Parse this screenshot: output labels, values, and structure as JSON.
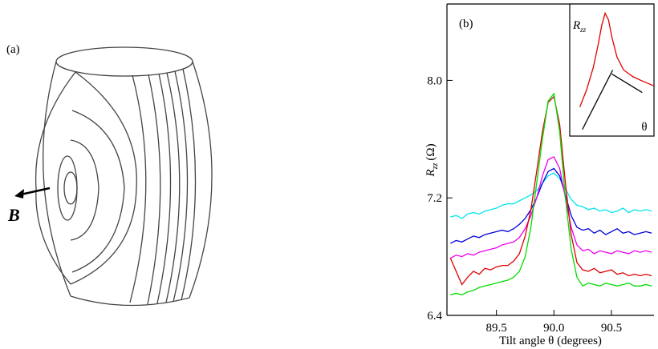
{
  "diagram": {
    "label": "(a)",
    "field_label": "B"
  },
  "chart_data": [
    {
      "type": "line",
      "panel_label": "(b)",
      "xlabel": "Tilt angle θ (degrees)",
      "ylabel": {
        "symbol": "R",
        "subscript": "zz",
        "unit": "(Ω)"
      },
      "xlim": [
        89.07,
        90.87
      ],
      "ylim": [
        6.4,
        8.52
      ],
      "xticks": [
        89.5,
        {
          "value": 90,
          "label": "90.0"
        },
        90.5
      ],
      "yticks": [
        6.4,
        7.2,
        {
          "value": 8,
          "label": "8.0"
        }
      ],
      "x": [
        89.1,
        89.15,
        89.2,
        89.25,
        89.3,
        89.35,
        89.4,
        89.45,
        89.5,
        89.55,
        89.6,
        89.65,
        89.7,
        89.75,
        89.8,
        89.85,
        89.9,
        89.95,
        90.0,
        90.05,
        90.1,
        90.15,
        90.2,
        90.25,
        90.3,
        90.35,
        90.4,
        90.45,
        90.5,
        90.55,
        90.6,
        90.65,
        90.7,
        90.75,
        90.8,
        90.85
      ],
      "series": [
        {
          "color": "#00e5ee",
          "values": [
            7.07,
            7.08,
            7.06,
            7.09,
            7.1,
            7.09,
            7.11,
            7.12,
            7.13,
            7.15,
            7.16,
            7.16,
            7.18,
            7.2,
            7.22,
            7.25,
            7.3,
            7.35,
            7.37,
            7.33,
            7.26,
            7.19,
            7.15,
            7.14,
            7.12,
            7.13,
            7.11,
            7.12,
            7.1,
            7.11,
            7.13,
            7.1,
            7.12,
            7.11,
            7.12,
            7.11
          ]
        },
        {
          "color": "#0000dd",
          "values": [
            6.89,
            6.91,
            6.9,
            6.92,
            6.94,
            6.93,
            6.95,
            6.96,
            6.97,
            6.98,
            6.97,
            6.99,
            7.02,
            7.06,
            7.12,
            7.2,
            7.3,
            7.38,
            7.4,
            7.35,
            7.22,
            7.08,
            7.0,
            6.98,
            6.99,
            6.96,
            6.98,
            6.95,
            6.97,
            6.99,
            6.96,
            6.97,
            6.95,
            6.96,
            6.97,
            6.96
          ]
        },
        {
          "color": "#ee00ee",
          "values": [
            6.79,
            6.81,
            6.8,
            6.82,
            6.81,
            6.83,
            6.84,
            6.85,
            6.86,
            6.88,
            6.89,
            6.9,
            6.93,
            6.99,
            7.08,
            7.2,
            7.35,
            7.46,
            7.48,
            7.4,
            7.2,
            7.0,
            6.88,
            6.84,
            6.85,
            6.82,
            6.84,
            6.83,
            6.82,
            6.84,
            6.83,
            6.82,
            6.84,
            6.83,
            6.84,
            6.83
          ]
        },
        {
          "color": "#dd0000",
          "values": [
            6.79,
            6.7,
            6.61,
            6.66,
            6.7,
            6.68,
            6.72,
            6.71,
            6.73,
            6.74,
            6.74,
            6.77,
            6.82,
            6.94,
            7.12,
            7.38,
            7.65,
            7.85,
            7.89,
            7.7,
            7.3,
            6.95,
            6.76,
            6.71,
            6.7,
            6.72,
            6.69,
            6.7,
            6.71,
            6.68,
            6.69,
            6.67,
            6.68,
            6.67,
            6.68,
            6.67
          ]
        },
        {
          "color": "#00dd00",
          "values": [
            6.54,
            6.55,
            6.54,
            6.56,
            6.57,
            6.59,
            6.6,
            6.61,
            6.62,
            6.63,
            6.64,
            6.66,
            6.7,
            6.8,
            7.0,
            7.3,
            7.6,
            7.86,
            7.91,
            7.65,
            7.2,
            6.85,
            6.66,
            6.6,
            6.62,
            6.61,
            6.6,
            6.62,
            6.61,
            6.6,
            6.61,
            6.62,
            6.6,
            6.6,
            6.61,
            6.6
          ]
        }
      ]
    },
    {
      "type": "line",
      "ylabel": {
        "symbol": "R",
        "subscript": "zz"
      },
      "xlabel": "θ",
      "xlim": [
        0,
        1
      ],
      "ylim": [
        0,
        1
      ],
      "series": [
        {
          "color": "#dd0000",
          "x": [
            0.12,
            0.2,
            0.28,
            0.34,
            0.38,
            0.42,
            0.46,
            0.5,
            0.56,
            0.64,
            0.75,
            0.85,
            1.0
          ],
          "values": [
            0.22,
            0.35,
            0.52,
            0.7,
            0.84,
            0.93,
            0.88,
            0.75,
            0.6,
            0.5,
            0.45,
            0.42,
            0.38
          ]
        },
        {
          "color": "#000000",
          "x": [
            0.15,
            0.51
          ],
          "values": [
            0.05,
            0.5
          ]
        },
        {
          "color": "#000000",
          "x": [
            0.5,
            0.86
          ],
          "values": [
            0.47,
            0.33
          ]
        }
      ]
    }
  ]
}
